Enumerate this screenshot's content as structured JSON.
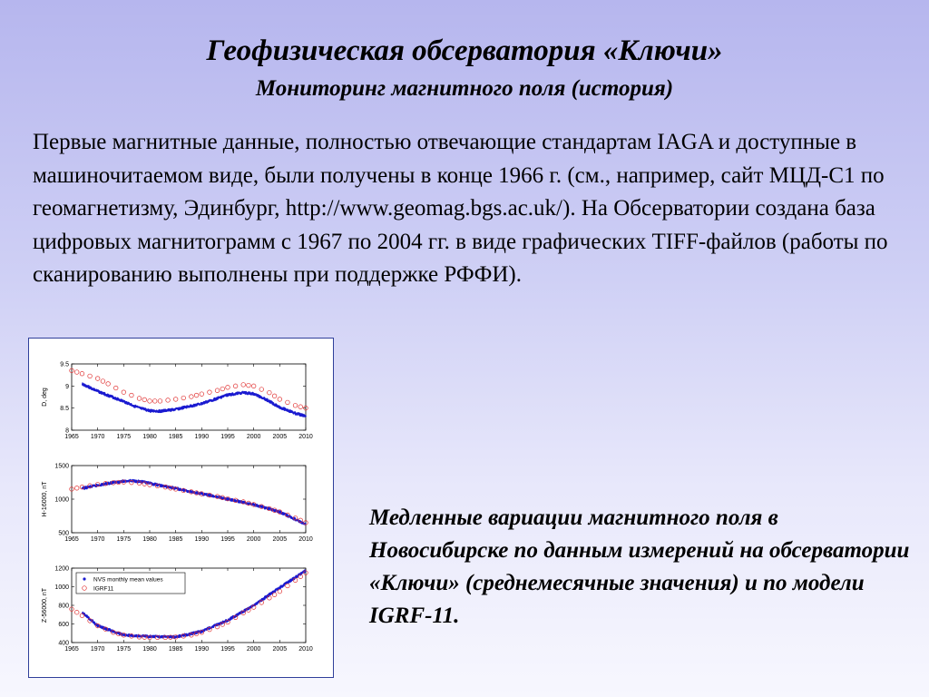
{
  "slide": {
    "title": "Геофизическая обсерватория «Ключи»",
    "subtitle": "Мониторинг магнитного поля (история)",
    "body": "Первые магнитные данные, полностью отвечающие стандартам IAGA и доступные в машиночитаемом виде, были получены в конце 1966 г. (см., например, сайт МЦД-С1 по геомагнетизму, Эдинбург, http://www.geomag.bgs.ac.uk/). На Обсерватории создана база цифровых магнитограмм с 1967 по 2004 гг. в виде графических TIFF-файлов (работы по сканированию выполнены при поддержке РФФИ).",
    "caption": "Медленные вариации магнитного поля в Новосибирске по данным измерений на обсерватории «Ключи» (среднемесячные значения) и по модели IGRF-11."
  },
  "colors": {
    "observed": "#1a1ad0",
    "model": "#e03030",
    "figure_border": "#2f3f9a"
  },
  "chart_data": [
    {
      "type": "line",
      "ylabel": "D, deg",
      "xlim": [
        1965,
        2010
      ],
      "ylim": [
        8,
        9.5
      ],
      "xticks": [
        1965,
        1970,
        1975,
        1980,
        1985,
        1990,
        1995,
        2000,
        2005,
        2010
      ],
      "yticks": [
        8,
        8.5,
        9,
        9.5
      ],
      "ytick_labels": [
        "8",
        "8.5",
        "9",
        "9.5"
      ],
      "legend": null,
      "series": [
        {
          "style": "line",
          "x": [
            1967,
            1970,
            1975,
            1978,
            1980,
            1982,
            1985,
            1990,
            1995,
            1998,
            2000,
            2002,
            2005,
            2008,
            2010
          ],
          "y": [
            9.05,
            8.88,
            8.65,
            8.5,
            8.44,
            8.43,
            8.47,
            8.6,
            8.8,
            8.85,
            8.82,
            8.72,
            8.52,
            8.38,
            8.32
          ]
        },
        {
          "style": "markers",
          "x": [
            1965,
            1967,
            1970,
            1972,
            1975,
            1978,
            1980,
            1982,
            1985,
            1988,
            1990,
            1993,
            1995,
            1998,
            2000,
            2003,
            2005,
            2008,
            2010
          ],
          "y": [
            9.35,
            9.28,
            9.17,
            9.05,
            8.86,
            8.72,
            8.66,
            8.66,
            8.7,
            8.76,
            8.82,
            8.9,
            8.97,
            9.03,
            9.0,
            8.85,
            8.7,
            8.56,
            8.5
          ]
        }
      ]
    },
    {
      "type": "line",
      "ylabel": "H-16000, nT",
      "xlim": [
        1965,
        2010
      ],
      "ylim": [
        500,
        1500
      ],
      "xticks": [
        1965,
        1970,
        1975,
        1980,
        1985,
        1990,
        1995,
        2000,
        2005,
        2010
      ],
      "yticks": [
        500,
        1000,
        1500
      ],
      "ytick_labels": [
        "500",
        "1000",
        "1500"
      ],
      "legend": null,
      "series": [
        {
          "style": "line",
          "x": [
            1967,
            1970,
            1973,
            1976,
            1978,
            1980,
            1985,
            1990,
            1995,
            2000,
            2005,
            2008,
            2010
          ],
          "y": [
            1160,
            1205,
            1250,
            1275,
            1265,
            1235,
            1160,
            1080,
            1000,
            920,
            810,
            700,
            620
          ]
        },
        {
          "style": "markers",
          "x": [
            1965,
            1967,
            1970,
            1973,
            1975,
            1978,
            1980,
            1983,
            1985,
            1988,
            1990,
            1993,
            1995,
            1998,
            2000,
            2003,
            2005,
            2008,
            2010
          ],
          "y": [
            1150,
            1180,
            1220,
            1245,
            1255,
            1240,
            1215,
            1180,
            1150,
            1110,
            1080,
            1040,
            1005,
            960,
            920,
            860,
            810,
            720,
            650
          ]
        }
      ]
    },
    {
      "type": "line",
      "ylabel": "Z-56000, nT",
      "xlim": [
        1965,
        2010
      ],
      "ylim": [
        400,
        1200
      ],
      "xticks": [
        1965,
        1970,
        1975,
        1980,
        1985,
        1990,
        1995,
        2000,
        2005,
        2010
      ],
      "yticks": [
        400,
        600,
        800,
        1000,
        1200
      ],
      "ytick_labels": [
        "400",
        "600",
        "800",
        "1000",
        "1200"
      ],
      "legend": {
        "position": "top-left",
        "entries": [
          "NVS monthly mean values",
          "IGRF11"
        ]
      },
      "series": [
        {
          "style": "line",
          "x": [
            1967,
            1970,
            1975,
            1980,
            1985,
            1990,
            1995,
            2000,
            2005,
            2008,
            2010
          ],
          "y": [
            730,
            580,
            480,
            465,
            460,
            520,
            640,
            800,
            990,
            1100,
            1175
          ]
        },
        {
          "style": "markers",
          "x": [
            1965,
            1967,
            1970,
            1973,
            1975,
            1978,
            1980,
            1983,
            1985,
            1988,
            1990,
            1993,
            1995,
            1998,
            2000,
            2003,
            2005,
            2008,
            2010
          ],
          "y": [
            760,
            690,
            580,
            510,
            480,
            460,
            455,
            455,
            460,
            480,
            510,
            570,
            620,
            720,
            780,
            880,
            950,
            1070,
            1150
          ]
        }
      ]
    }
  ]
}
